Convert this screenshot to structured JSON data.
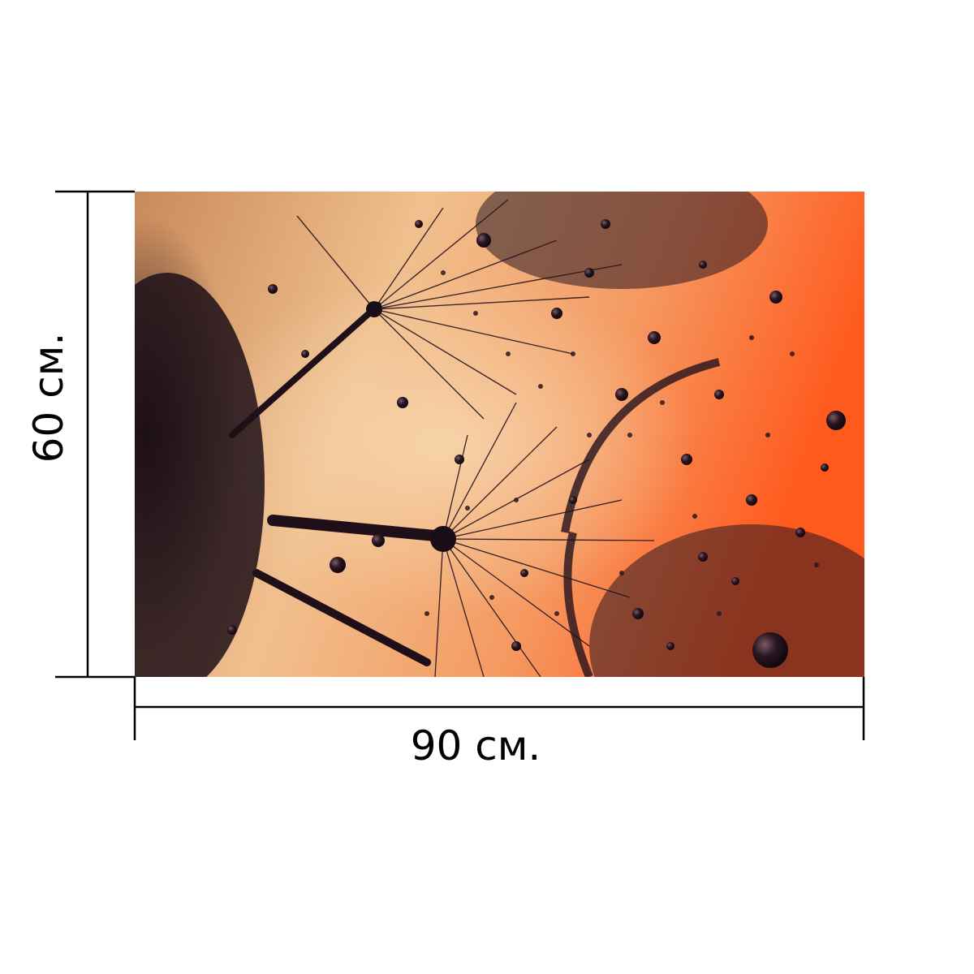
{
  "dimensions": {
    "width_label": "90 см.",
    "height_label": "60 см."
  },
  "photo": {
    "palette": {
      "sky_orange": "#ff5a1e",
      "sky_peach": "#f0c08e",
      "silhouette": "#2a1620",
      "deep_shadow": "#150a12"
    }
  },
  "colors": {
    "background": "#ffffff",
    "dimension_lines": "#000000",
    "label_text": "#000000"
  }
}
